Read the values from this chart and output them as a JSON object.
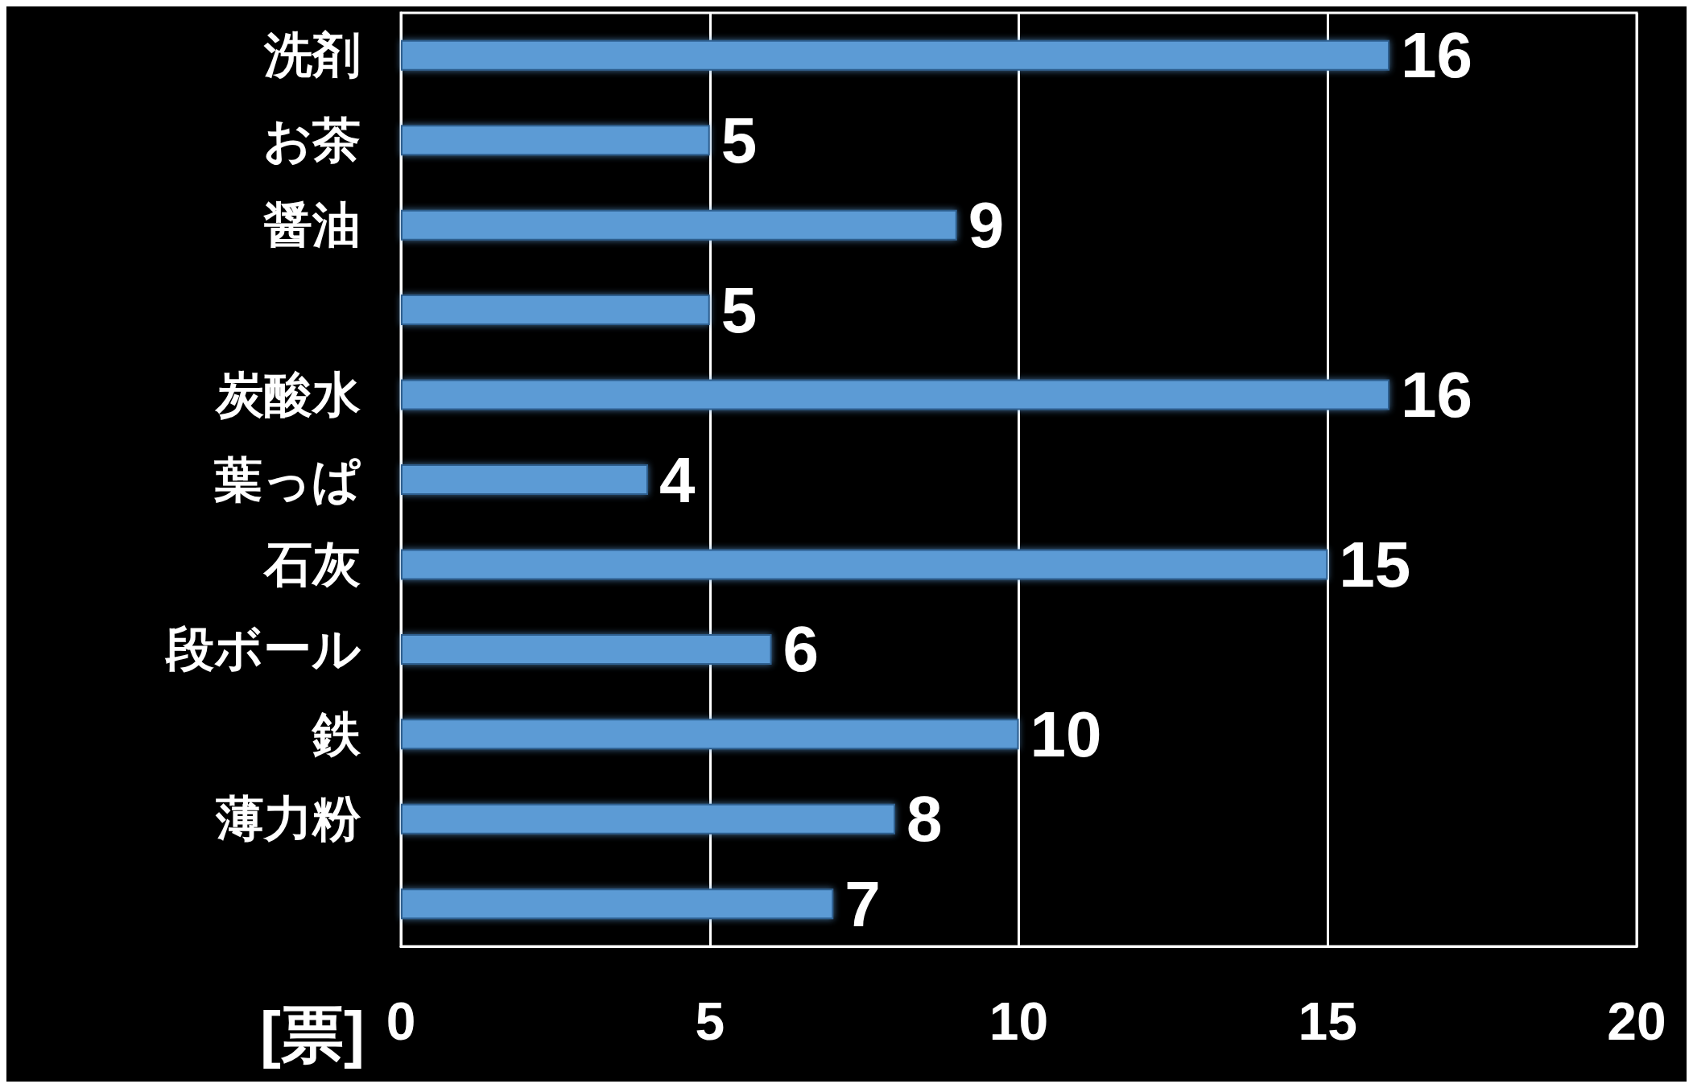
{
  "chart_data": {
    "type": "bar",
    "orientation": "horizontal",
    "xlabel": "[票]",
    "categories": [
      "洗剤",
      "お茶",
      "醤油",
      null,
      "炭酸水",
      "葉っぱ",
      "石灰",
      "段ボール",
      "鉄",
      "薄力粉",
      null
    ],
    "values": [
      16,
      5,
      9,
      5,
      16,
      4,
      15,
      6,
      10,
      8,
      7
    ],
    "color": "#5b9bd5",
    "xlim": [
      0,
      20
    ],
    "xticks": [
      0,
      5,
      10,
      15,
      20
    ],
    "grid": "x",
    "data_labels": true
  }
}
